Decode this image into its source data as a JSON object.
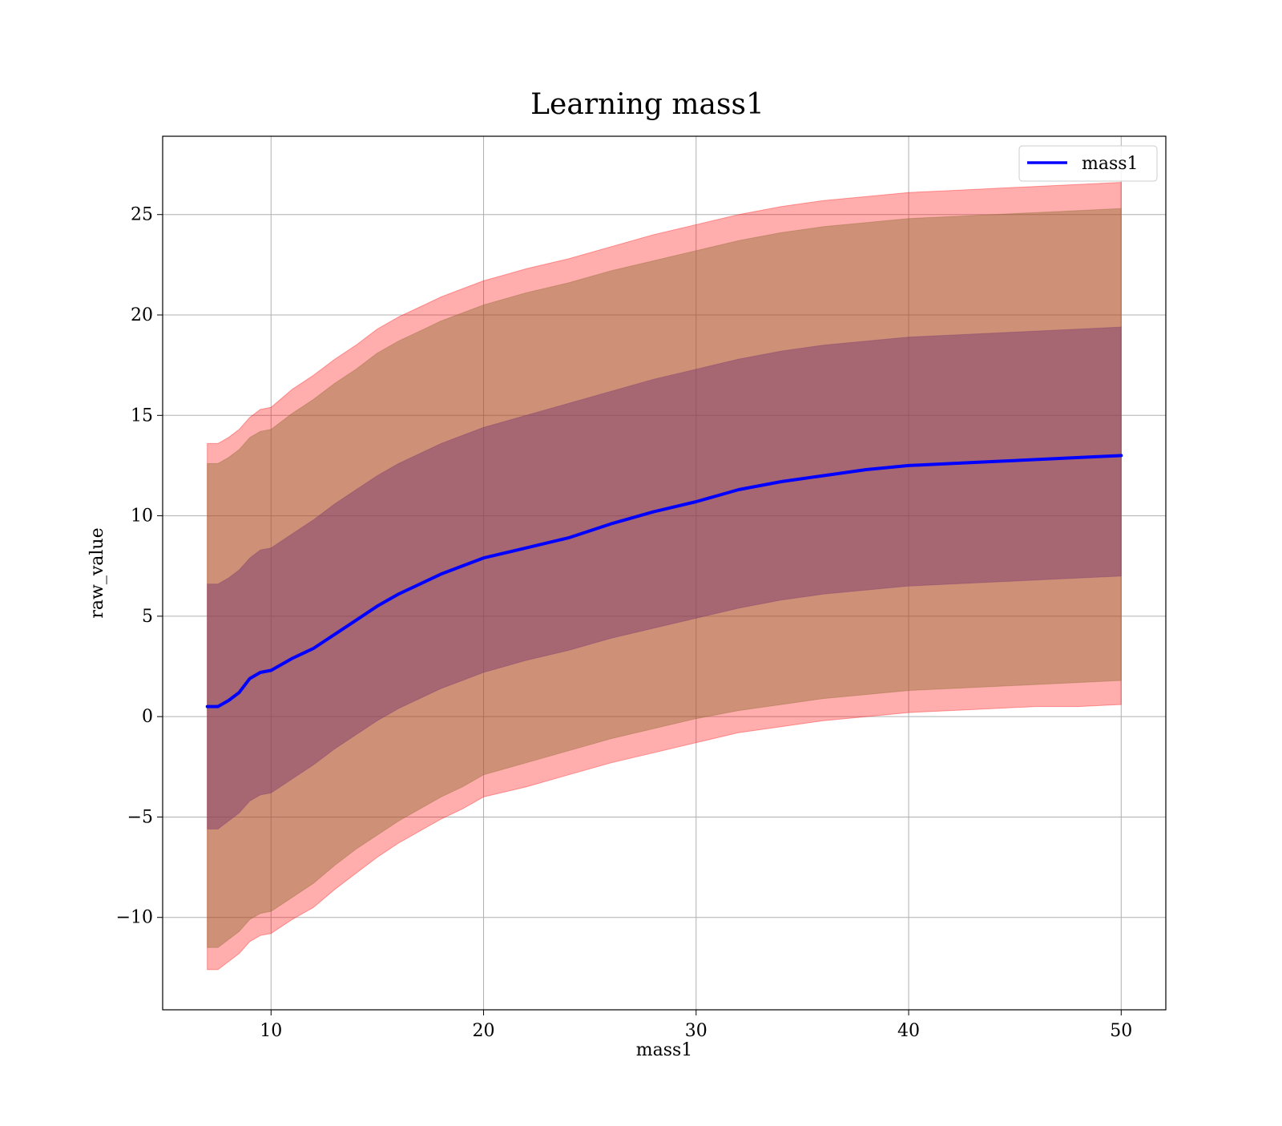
{
  "chart_data": {
    "type": "area",
    "title": "Learning mass1",
    "xlabel": "mass1",
    "ylabel": "raw_value",
    "xlim": [
      4.9,
      52.1
    ],
    "ylim": [
      -14.6,
      28.9
    ],
    "x_ticks": [
      10,
      20,
      30,
      40,
      50
    ],
    "x_tick_labels": [
      "10",
      "20",
      "30",
      "40",
      "50"
    ],
    "y_ticks": [
      -10,
      -5,
      0,
      5,
      10,
      15,
      20,
      25
    ],
    "y_tick_labels": [
      "−10",
      "−5",
      "0",
      "5",
      "10",
      "15",
      "20",
      "25"
    ],
    "grid": true,
    "legend_position": "top-right",
    "legend": [
      "mass1"
    ],
    "colors": {
      "line": "#0000ff",
      "outer_band": "#ff0000",
      "middle_band": "#8c6a2f",
      "inner_band": "#7a3a6e",
      "grid": "#b0b0b0"
    },
    "series": [
      {
        "name": "mass1",
        "role": "line",
        "x": [
          7,
          7.5,
          8,
          8.5,
          9,
          9.5,
          10,
          11,
          12,
          13,
          14,
          15,
          16,
          17,
          18,
          19,
          20,
          22,
          24,
          26,
          28,
          30,
          32,
          34,
          36,
          38,
          40,
          42,
          44,
          46,
          48,
          50
        ],
        "y": [
          0.5,
          0.5,
          0.8,
          1.2,
          1.9,
          2.2,
          2.3,
          2.9,
          3.4,
          4.1,
          4.8,
          5.5,
          6.1,
          6.6,
          7.1,
          7.5,
          7.9,
          8.4,
          8.9,
          9.6,
          10.2,
          10.7,
          11.3,
          11.7,
          12.0,
          12.3,
          12.5,
          12.6,
          12.7,
          12.8,
          12.9,
          13.0
        ]
      }
    ],
    "bands": [
      {
        "band": "outer",
        "x": [
          7,
          7.5,
          8,
          8.5,
          9,
          9.5,
          10,
          11,
          12,
          13,
          14,
          15,
          16,
          17,
          18,
          19,
          20,
          22,
          24,
          26,
          28,
          30,
          32,
          34,
          36,
          38,
          40,
          42,
          44,
          46,
          48,
          50
        ],
        "lower": [
          -12.6,
          -12.6,
          -12.2,
          -11.8,
          -11.2,
          -10.9,
          -10.8,
          -10.1,
          -9.5,
          -8.6,
          -7.8,
          -7.0,
          -6.3,
          -5.7,
          -5.1,
          -4.6,
          -4.0,
          -3.5,
          -2.9,
          -2.3,
          -1.8,
          -1.3,
          -0.8,
          -0.5,
          -0.2,
          0.0,
          0.2,
          0.3,
          0.4,
          0.5,
          0.5,
          0.6
        ],
        "upper": [
          13.6,
          13.6,
          13.9,
          14.3,
          14.9,
          15.3,
          15.4,
          16.3,
          17.0,
          17.8,
          18.5,
          19.3,
          19.9,
          20.4,
          20.9,
          21.3,
          21.7,
          22.3,
          22.8,
          23.4,
          24.0,
          24.5,
          25.0,
          25.4,
          25.7,
          25.9,
          26.1,
          26.2,
          26.3,
          26.4,
          26.5,
          26.6
        ]
      },
      {
        "band": "middle",
        "x": [
          7,
          7.5,
          8,
          8.5,
          9,
          9.5,
          10,
          11,
          12,
          13,
          14,
          15,
          16,
          17,
          18,
          19,
          20,
          22,
          24,
          26,
          28,
          30,
          32,
          34,
          36,
          38,
          40,
          42,
          44,
          46,
          48,
          50
        ],
        "lower": [
          -11.5,
          -11.5,
          -11.1,
          -10.7,
          -10.1,
          -9.8,
          -9.7,
          -9.0,
          -8.3,
          -7.4,
          -6.6,
          -5.9,
          -5.2,
          -4.6,
          -4.0,
          -3.5,
          -2.9,
          -2.3,
          -1.7,
          -1.1,
          -0.6,
          -0.1,
          0.3,
          0.6,
          0.9,
          1.1,
          1.3,
          1.4,
          1.5,
          1.6,
          1.7,
          1.8
        ],
        "upper": [
          12.6,
          12.6,
          12.9,
          13.3,
          13.9,
          14.2,
          14.3,
          15.1,
          15.8,
          16.6,
          17.3,
          18.1,
          18.7,
          19.2,
          19.7,
          20.1,
          20.5,
          21.1,
          21.6,
          22.2,
          22.7,
          23.2,
          23.7,
          24.1,
          24.4,
          24.6,
          24.8,
          24.9,
          25.0,
          25.1,
          25.2,
          25.3
        ]
      },
      {
        "band": "inner",
        "x": [
          7,
          7.5,
          8,
          8.5,
          9,
          9.5,
          10,
          11,
          12,
          13,
          14,
          15,
          16,
          17,
          18,
          19,
          20,
          22,
          24,
          26,
          28,
          30,
          32,
          34,
          36,
          38,
          40,
          42,
          44,
          46,
          48,
          50
        ],
        "lower": [
          -5.6,
          -5.6,
          -5.2,
          -4.8,
          -4.2,
          -3.9,
          -3.8,
          -3.1,
          -2.4,
          -1.6,
          -0.9,
          -0.2,
          0.4,
          0.9,
          1.4,
          1.8,
          2.2,
          2.8,
          3.3,
          3.9,
          4.4,
          4.9,
          5.4,
          5.8,
          6.1,
          6.3,
          6.5,
          6.6,
          6.7,
          6.8,
          6.9,
          7.0
        ],
        "upper": [
          6.6,
          6.6,
          6.9,
          7.3,
          7.9,
          8.3,
          8.4,
          9.1,
          9.8,
          10.6,
          11.3,
          12.0,
          12.6,
          13.1,
          13.6,
          14.0,
          14.4,
          15.0,
          15.6,
          16.2,
          16.8,
          17.3,
          17.8,
          18.2,
          18.5,
          18.7,
          18.9,
          19.0,
          19.1,
          19.2,
          19.3,
          19.4
        ]
      }
    ]
  }
}
